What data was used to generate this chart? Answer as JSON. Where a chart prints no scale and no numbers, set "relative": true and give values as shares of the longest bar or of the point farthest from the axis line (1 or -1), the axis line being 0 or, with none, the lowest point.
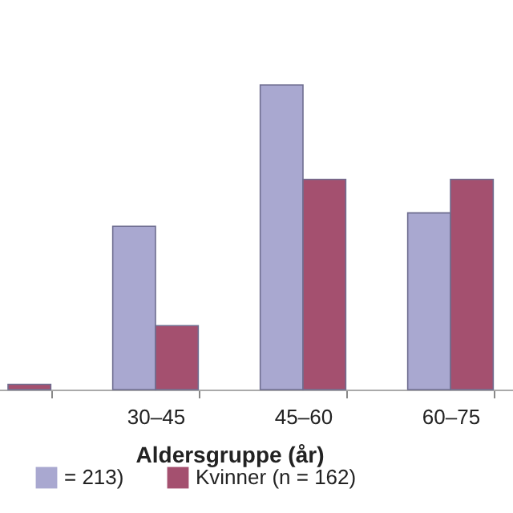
{
  "chart_data": {
    "type": "bar",
    "xlabel": "Aldersgruppe (år)",
    "relative": true,
    "categories": [
      null,
      "30–45",
      "45–60",
      "60–75"
    ],
    "series": [
      {
        "name": "= 213)",
        "color": "#a9a8d0",
        "values": [
          null,
          0.536,
          1,
          0.58
        ]
      },
      {
        "name": "Kvinner (n = 162)",
        "color": "#a4506f",
        "values": [
          0.017,
          0.21,
          0.69,
          0.69
        ]
      }
    ],
    "legend": "bottom",
    "grid": false
  }
}
